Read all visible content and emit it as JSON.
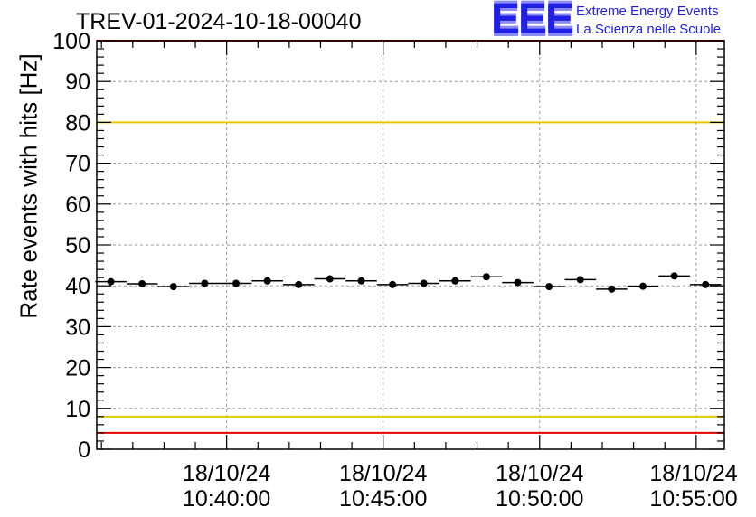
{
  "run_title": "TREV-01-2024-10-18-00040",
  "logo": {
    "mark": "EEE",
    "line1": "Extreme Energy Events",
    "line2": "La Scienza nelle Scuole",
    "color": "#1f1fe6"
  },
  "chart_data": {
    "type": "scatter",
    "ylabel": "Rate events with hits [Hz]",
    "xlabel": "",
    "ylim": [
      0,
      100
    ],
    "yticks": [
      0,
      10,
      20,
      30,
      40,
      50,
      60,
      70,
      80,
      90,
      100
    ],
    "xlim_minutes": [
      35.85,
      55.9
    ],
    "xticks": [
      {
        "minute": 40,
        "date": "18/10/24",
        "time": "10:40:00"
      },
      {
        "minute": 45,
        "date": "18/10/24",
        "time": "10:45:00"
      },
      {
        "minute": 50,
        "date": "18/10/24",
        "time": "10:50:00"
      },
      {
        "minute": 55,
        "date": "18/10/24",
        "time": "10:55:00"
      }
    ],
    "grid": true,
    "bin_width_minutes": 1.0,
    "x_minutes": [
      36.3,
      37.3,
      38.3,
      39.3,
      40.3,
      41.3,
      42.3,
      43.3,
      44.3,
      45.3,
      46.3,
      47.3,
      48.3,
      49.3,
      50.3,
      51.3,
      52.3,
      53.3,
      54.3,
      55.3
    ],
    "values": [
      41.0,
      40.5,
      39.8,
      40.6,
      40.6,
      41.2,
      40.3,
      41.7,
      41.2,
      40.3,
      40.6,
      41.2,
      42.2,
      40.8,
      39.8,
      41.5,
      39.2,
      39.9,
      42.4,
      40.3
    ],
    "reference_lines": [
      {
        "y": 100,
        "color": "#e60000"
      },
      {
        "y": 80,
        "color": "#e6c800"
      },
      {
        "y": 8,
        "color": "#e6c800"
      },
      {
        "y": 4,
        "color": "#e60000"
      }
    ],
    "marker_color": "#000000"
  }
}
